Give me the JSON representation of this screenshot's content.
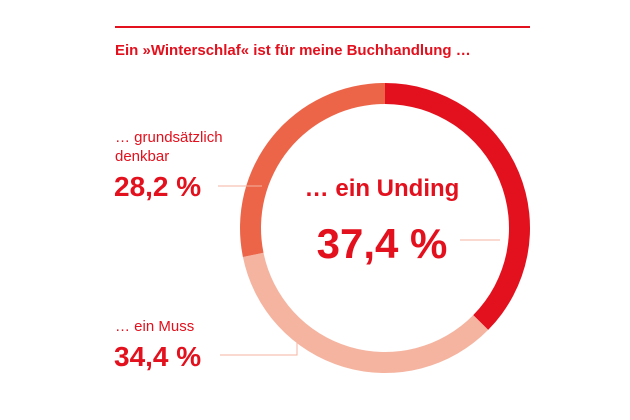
{
  "chart_data": {
    "type": "pie",
    "variant": "donut",
    "title": "Ein »Winterschlaf« ist für meine Buchhandlung …",
    "slices": [
      {
        "label": "… ein Unding",
        "value": 37.4,
        "value_label": "37,4 %",
        "color": "#e3101d"
      },
      {
        "label": "… ein Muss",
        "value": 34.4,
        "value_label": "34,4 %",
        "color": "#f5b4a0"
      },
      {
        "label": "… grundsätzlich denkbar",
        "label_lines": [
          "… grundsätzlich",
          "denkbar"
        ],
        "value": 28.2,
        "value_label": "28,2 %",
        "color": "#ec6549"
      }
    ]
  },
  "colors": {
    "accent": "#e3101d",
    "leader_line": "#f5b4a0"
  }
}
